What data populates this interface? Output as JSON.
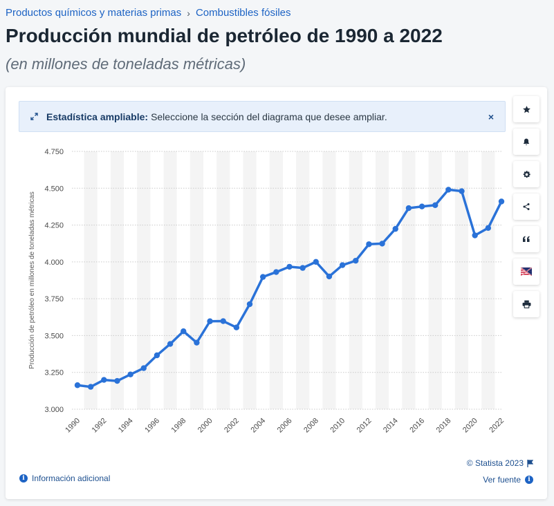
{
  "breadcrumb": {
    "items": [
      "Productos químicos y materias primas",
      "Combustibles fósiles"
    ],
    "separator": "›"
  },
  "header": {
    "title": "Producción mundial de petróleo de 1990 a 2022",
    "subtitle": "(en millones de toneladas métricas)"
  },
  "banner": {
    "icon": "expand-arrows-icon",
    "strong": "Estadística ampliable:",
    "message": "Seleccione la sección del diagrama que desee ampliar.",
    "close": "×"
  },
  "tools": [
    {
      "name": "favorite-button",
      "icon": "star-icon"
    },
    {
      "name": "notification-button",
      "icon": "bell-icon"
    },
    {
      "name": "settings-button",
      "icon": "gear-icon"
    },
    {
      "name": "share-button",
      "icon": "share-icon"
    },
    {
      "name": "cite-button",
      "icon": "quote-icon"
    },
    {
      "name": "language-button",
      "icon": "flag-us-uk-icon"
    },
    {
      "name": "print-button",
      "icon": "printer-icon"
    }
  ],
  "footer": {
    "copyright": "© Statista 2023",
    "info": "Información adicional",
    "source": "Ver fuente"
  },
  "colors": {
    "line": "#2a72d8",
    "accent": "#1d63c4",
    "band": "#f4f4f4",
    "grid": "#c9c9c9"
  },
  "chart_data": {
    "type": "line",
    "title": "",
    "xlabel": "",
    "ylabel": "Producción de petróleo en millones de toneladas métricas",
    "ylim": [
      3000,
      4750
    ],
    "yticks": [
      3000,
      3250,
      3500,
      3750,
      4000,
      4250,
      4500,
      4750
    ],
    "ytick_labels": [
      "3.000",
      "3.250",
      "3.500",
      "3.750",
      "4.000",
      "4.250",
      "4.500",
      "4.750"
    ],
    "xtick_labels": [
      "1990",
      "1992",
      "1994",
      "1996",
      "1998",
      "2000",
      "2002",
      "2004",
      "2006",
      "2008",
      "2010",
      "2012",
      "2014",
      "2016",
      "2018",
      "2020",
      "2022"
    ],
    "grid": true,
    "legend": "none",
    "x": [
      1990,
      1991,
      1992,
      1993,
      1994,
      1995,
      1996,
      1997,
      1998,
      1999,
      2000,
      2001,
      2002,
      2003,
      2004,
      2005,
      2006,
      2007,
      2008,
      2009,
      2010,
      2011,
      2012,
      2013,
      2014,
      2015,
      2016,
      2017,
      2018,
      2019,
      2020,
      2021,
      2022
    ],
    "series": [
      {
        "values": [
          3163,
          3152,
          3199,
          3192,
          3236,
          3279,
          3366,
          3443,
          3529,
          3452,
          3597,
          3598,
          3555,
          3713,
          3898,
          3931,
          3967,
          3959,
          4000,
          3901,
          3978,
          4008,
          4120,
          4124,
          4224,
          4365,
          4376,
          4385,
          4490,
          4480,
          4180,
          4230,
          4410
        ]
      }
    ]
  }
}
